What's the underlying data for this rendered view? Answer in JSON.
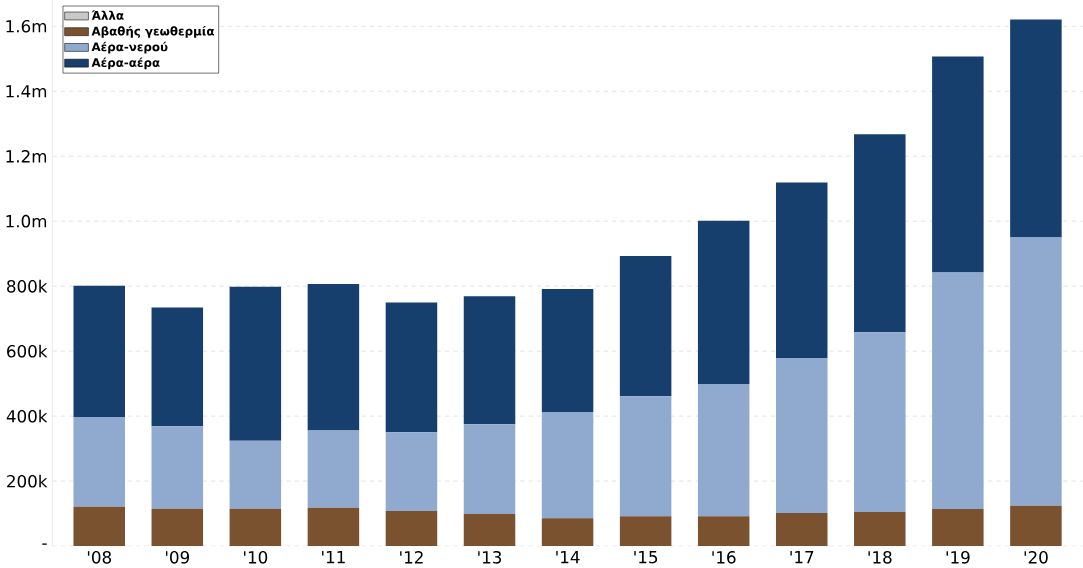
{
  "chart_data": {
    "type": "bar",
    "stacked": true,
    "categories": [
      "'08",
      "'09",
      "'10",
      "'11",
      "'12",
      "'13",
      "'14",
      "'15",
      "'16",
      "'17",
      "'18",
      "'19",
      "'20"
    ],
    "series": [
      {
        "name": "Άλλα",
        "color": "#c8c8c8",
        "values": [
          0,
          0,
          0,
          0,
          0,
          0,
          0,
          0,
          0,
          0,
          0,
          0,
          0
        ]
      },
      {
        "name": "Αβαθής γεωθερμία",
        "color": "#7b5230",
        "values": [
          121000,
          115000,
          115000,
          118000,
          108000,
          99000,
          86000,
          92000,
          92000,
          102000,
          105000,
          114000,
          124000
        ]
      },
      {
        "name": "Αέρα-νερού",
        "color": "#8fa9cf",
        "values": [
          276000,
          254000,
          209000,
          238000,
          242000,
          276000,
          327000,
          369000,
          407000,
          477000,
          553000,
          728000,
          826000
        ]
      },
      {
        "name": "Αέρα-αέρα",
        "color": "#173f6e",
        "values": [
          404000,
          365000,
          474000,
          451000,
          400000,
          394000,
          378000,
          432000,
          502000,
          540000,
          610000,
          665000,
          671000
        ]
      }
    ],
    "ylim": [
      0,
      1680000
    ],
    "yticks": [
      {
        "value": 0,
        "label": "-"
      },
      {
        "value": 200000,
        "label": "200k"
      },
      {
        "value": 400000,
        "label": "400k"
      },
      {
        "value": 600000,
        "label": "600k"
      },
      {
        "value": 800000,
        "label": "800k"
      },
      {
        "value": 1000000,
        "label": "1.0m"
      },
      {
        "value": 1200000,
        "label": "1.2m"
      },
      {
        "value": 1400000,
        "label": "1.4m"
      },
      {
        "value": 1600000,
        "label": "1.6m"
      }
    ],
    "grid": "y",
    "legend": "top left"
  }
}
